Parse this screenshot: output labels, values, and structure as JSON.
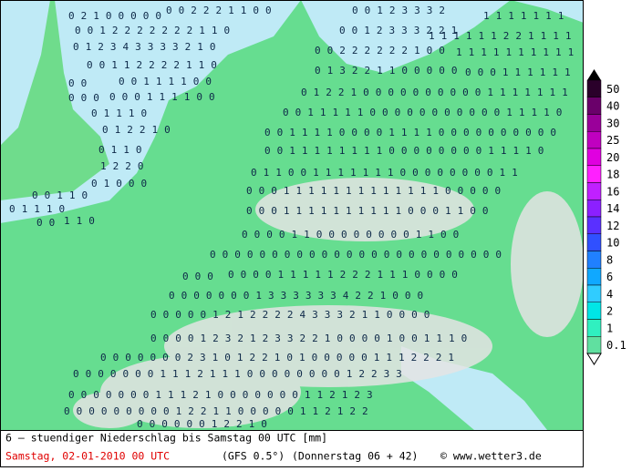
{
  "map": {
    "rows": [
      "02100000",
      "002221100",
      "00123332",
      "1111111",
      "0012222222110",
      "0012333221",
      "111111221111",
      "012343333210",
      "00222222100",
      "1111111111",
      "00112222110",
      "013221100000",
      "000111111",
      "00",
      "00111100",
      "0122100000000001111111",
      "000",
      "000111100",
      "00111110000000000011110",
      "01110",
      "001111000011110000000000",
      "012210",
      "00111111110000000011110",
      "0110",
      "0110011111110000000011",
      "1220",
      "000111111111111100000",
      "01000",
      "01110",
      "00011111111110001100",
      "00110",
      "00",
      "110",
      "000011000000001100",
      "000000000000000000000000",
      "0000111112221110000",
      "000",
      "000000013333334221000",
      "00000121222243332110000",
      "00001232123322100001001110",
      "00000002310122101000001112221",
      "000000011121110000000012233",
      "0000000111210000000112123",
      "0000000001221100000112122",
      "00000012210"
    ]
  },
  "legend": [
    {
      "value": 50,
      "color": "#2a002a"
    },
    {
      "value": 40,
      "color": "#6a006a"
    },
    {
      "value": 30,
      "color": "#9a009a"
    },
    {
      "value": 25,
      "color": "#c000c0"
    },
    {
      "value": 20,
      "color": "#e000e0"
    },
    {
      "value": 18,
      "color": "#ff20ff"
    },
    {
      "value": 16,
      "color": "#c020ff"
    },
    {
      "value": 14,
      "color": "#8c20ff"
    },
    {
      "value": 12,
      "color": "#5a30ff"
    },
    {
      "value": 10,
      "color": "#3050ff"
    },
    {
      "value": 8,
      "color": "#2080ff"
    },
    {
      "value": 6,
      "color": "#10a8ff"
    },
    {
      "value": 4,
      "color": "#30ccff"
    },
    {
      "value": 2,
      "color": "#00e6e6"
    },
    {
      "value": 1,
      "color": "#30f0c0"
    },
    {
      "value": 0.1,
      "color": "#60e0a0"
    }
  ],
  "footer": {
    "title": "6 – stuendiger Niederschlag bis Samstag 00 UTC [mm]",
    "date": "Samstag, 02-01-2010  00 UTC",
    "model": "(GFS 0.5°)",
    "run": "(Donnerstag 06 + 42)",
    "credit": "© www.wetter3.de"
  }
}
